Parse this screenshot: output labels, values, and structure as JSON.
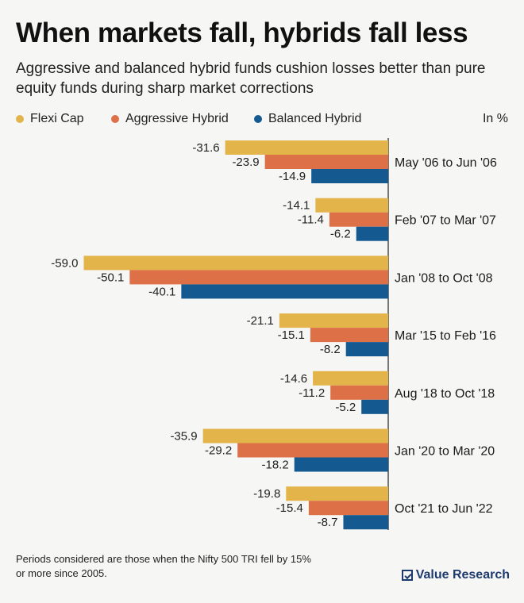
{
  "title": "When markets fall, hybrids fall less",
  "subtitle": "Aggressive and balanced hybrid funds cushion losses better than pure equity funds during sharp market corrections",
  "unit_label": "In %",
  "footnote": "Periods considered are those when the Nifty 500 TRI fell by 15% or more since 2005.",
  "brand": "Value Research",
  "colors": {
    "flexi_cap": "#e3b44a",
    "aggressive_hybrid": "#dd7046",
    "balanced_hybrid": "#145a91",
    "background": "#f6f6f4",
    "axis": "#222222"
  },
  "chart_data": {
    "type": "bar",
    "orientation": "horizontal",
    "title": "When markets fall, hybrids fall less",
    "xlabel": "",
    "ylabel": "",
    "unit": "In %",
    "xlim": [
      -60,
      0
    ],
    "legend_position": "top-left",
    "categories": [
      "May '06 to Jun '06",
      "Feb '07 to Mar '07",
      "Jan '08 to Oct '08",
      "Mar '15 to Feb '16",
      "Aug '18 to Oct '18",
      "Jan '20 to Mar '20",
      "Oct '21 to Jun '22"
    ],
    "series": [
      {
        "name": "Flexi Cap",
        "color": "#e3b44a",
        "values": [
          -31.6,
          -14.1,
          -59.0,
          -21.1,
          -14.6,
          -35.9,
          -19.8
        ]
      },
      {
        "name": "Aggressive Hybrid",
        "color": "#dd7046",
        "values": [
          -23.9,
          -11.4,
          -50.1,
          -15.1,
          -11.2,
          -29.2,
          -15.4
        ]
      },
      {
        "name": "Balanced Hybrid",
        "color": "#145a91",
        "values": [
          -14.9,
          -6.2,
          -40.1,
          -8.2,
          -5.2,
          -18.2,
          -8.7
        ]
      }
    ]
  }
}
